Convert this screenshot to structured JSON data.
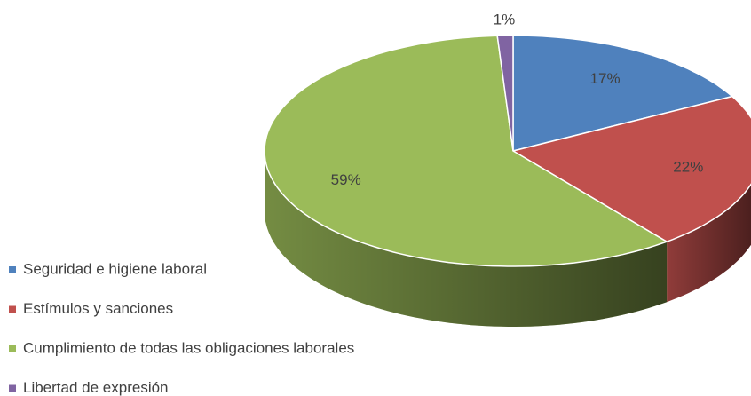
{
  "chart_data": {
    "type": "pie3d",
    "categories": [
      "Seguridad e higiene laboral",
      "Estímulos y sanciones",
      "Cumplimiento de todas las obligaciones laborales",
      "Libertad de expresión"
    ],
    "values": [
      17,
      22,
      59,
      1
    ],
    "value_labels": [
      "17%",
      "22%",
      "59%",
      "1%"
    ],
    "colors": [
      "#4f81bd",
      "#c0504d",
      "#9bbb59",
      "#8064a2"
    ],
    "legend": "left"
  }
}
